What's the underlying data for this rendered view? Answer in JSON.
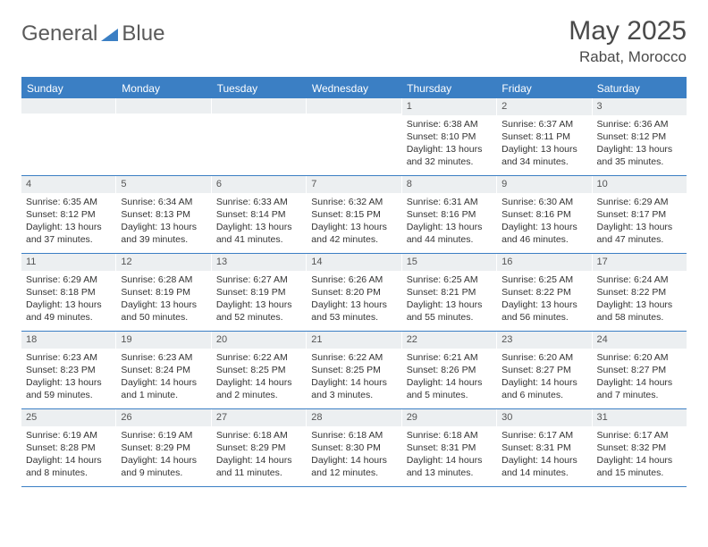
{
  "logo": {
    "text1": "General",
    "text2": "Blue",
    "accent_color": "#3b7fc4"
  },
  "header": {
    "month": "May 2025",
    "location": "Rabat, Morocco"
  },
  "calendar": {
    "header_bg": "#3b7fc4",
    "day_bg": "#eceff1",
    "border_color": "#3b7fc4",
    "days_of_week": [
      "Sunday",
      "Monday",
      "Tuesday",
      "Wednesday",
      "Thursday",
      "Friday",
      "Saturday"
    ],
    "weeks": [
      [
        null,
        null,
        null,
        null,
        {
          "n": "1",
          "sunrise": "6:38 AM",
          "sunset": "8:10 PM",
          "daylight": "13 hours and 32 minutes."
        },
        {
          "n": "2",
          "sunrise": "6:37 AM",
          "sunset": "8:11 PM",
          "daylight": "13 hours and 34 minutes."
        },
        {
          "n": "3",
          "sunrise": "6:36 AM",
          "sunset": "8:12 PM",
          "daylight": "13 hours and 35 minutes."
        }
      ],
      [
        {
          "n": "4",
          "sunrise": "6:35 AM",
          "sunset": "8:12 PM",
          "daylight": "13 hours and 37 minutes."
        },
        {
          "n": "5",
          "sunrise": "6:34 AM",
          "sunset": "8:13 PM",
          "daylight": "13 hours and 39 minutes."
        },
        {
          "n": "6",
          "sunrise": "6:33 AM",
          "sunset": "8:14 PM",
          "daylight": "13 hours and 41 minutes."
        },
        {
          "n": "7",
          "sunrise": "6:32 AM",
          "sunset": "8:15 PM",
          "daylight": "13 hours and 42 minutes."
        },
        {
          "n": "8",
          "sunrise": "6:31 AM",
          "sunset": "8:16 PM",
          "daylight": "13 hours and 44 minutes."
        },
        {
          "n": "9",
          "sunrise": "6:30 AM",
          "sunset": "8:16 PM",
          "daylight": "13 hours and 46 minutes."
        },
        {
          "n": "10",
          "sunrise": "6:29 AM",
          "sunset": "8:17 PM",
          "daylight": "13 hours and 47 minutes."
        }
      ],
      [
        {
          "n": "11",
          "sunrise": "6:29 AM",
          "sunset": "8:18 PM",
          "daylight": "13 hours and 49 minutes."
        },
        {
          "n": "12",
          "sunrise": "6:28 AM",
          "sunset": "8:19 PM",
          "daylight": "13 hours and 50 minutes."
        },
        {
          "n": "13",
          "sunrise": "6:27 AM",
          "sunset": "8:19 PM",
          "daylight": "13 hours and 52 minutes."
        },
        {
          "n": "14",
          "sunrise": "6:26 AM",
          "sunset": "8:20 PM",
          "daylight": "13 hours and 53 minutes."
        },
        {
          "n": "15",
          "sunrise": "6:25 AM",
          "sunset": "8:21 PM",
          "daylight": "13 hours and 55 minutes."
        },
        {
          "n": "16",
          "sunrise": "6:25 AM",
          "sunset": "8:22 PM",
          "daylight": "13 hours and 56 minutes."
        },
        {
          "n": "17",
          "sunrise": "6:24 AM",
          "sunset": "8:22 PM",
          "daylight": "13 hours and 58 minutes."
        }
      ],
      [
        {
          "n": "18",
          "sunrise": "6:23 AM",
          "sunset": "8:23 PM",
          "daylight": "13 hours and 59 minutes."
        },
        {
          "n": "19",
          "sunrise": "6:23 AM",
          "sunset": "8:24 PM",
          "daylight": "14 hours and 1 minute."
        },
        {
          "n": "20",
          "sunrise": "6:22 AM",
          "sunset": "8:25 PM",
          "daylight": "14 hours and 2 minutes."
        },
        {
          "n": "21",
          "sunrise": "6:22 AM",
          "sunset": "8:25 PM",
          "daylight": "14 hours and 3 minutes."
        },
        {
          "n": "22",
          "sunrise": "6:21 AM",
          "sunset": "8:26 PM",
          "daylight": "14 hours and 5 minutes."
        },
        {
          "n": "23",
          "sunrise": "6:20 AM",
          "sunset": "8:27 PM",
          "daylight": "14 hours and 6 minutes."
        },
        {
          "n": "24",
          "sunrise": "6:20 AM",
          "sunset": "8:27 PM",
          "daylight": "14 hours and 7 minutes."
        }
      ],
      [
        {
          "n": "25",
          "sunrise": "6:19 AM",
          "sunset": "8:28 PM",
          "daylight": "14 hours and 8 minutes."
        },
        {
          "n": "26",
          "sunrise": "6:19 AM",
          "sunset": "8:29 PM",
          "daylight": "14 hours and 9 minutes."
        },
        {
          "n": "27",
          "sunrise": "6:18 AM",
          "sunset": "8:29 PM",
          "daylight": "14 hours and 11 minutes."
        },
        {
          "n": "28",
          "sunrise": "6:18 AM",
          "sunset": "8:30 PM",
          "daylight": "14 hours and 12 minutes."
        },
        {
          "n": "29",
          "sunrise": "6:18 AM",
          "sunset": "8:31 PM",
          "daylight": "14 hours and 13 minutes."
        },
        {
          "n": "30",
          "sunrise": "6:17 AM",
          "sunset": "8:31 PM",
          "daylight": "14 hours and 14 minutes."
        },
        {
          "n": "31",
          "sunrise": "6:17 AM",
          "sunset": "8:32 PM",
          "daylight": "14 hours and 15 minutes."
        }
      ]
    ]
  },
  "labels": {
    "sunrise": "Sunrise:",
    "sunset": "Sunset:",
    "daylight": "Daylight:"
  }
}
